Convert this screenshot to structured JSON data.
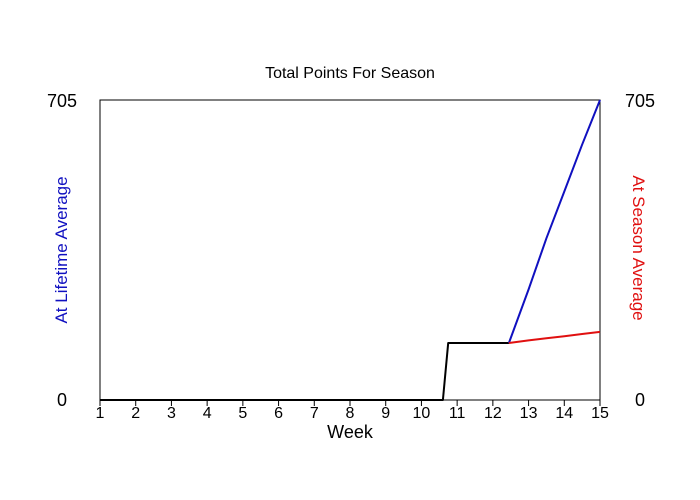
{
  "chart_data": {
    "type": "line",
    "title": "Total Points For Season",
    "xlabel": "Week",
    "ylabel_left": "At Lifetime Average",
    "ylabel_right": "At Season Average",
    "xlim": [
      1,
      15
    ],
    "ylim": [
      0,
      705
    ],
    "y_tick_labels": [
      "0",
      "705"
    ],
    "x_ticks": [
      "1",
      "2",
      "3",
      "4",
      "5",
      "6",
      "7",
      "8",
      "9",
      "10",
      "11",
      "12",
      "13",
      "14",
      "15"
    ],
    "colors": {
      "actual": "#000000",
      "lifetime": "#1010c0",
      "season": "#e01010"
    },
    "series": [
      {
        "id": "actual",
        "x": [
          1,
          10.6,
          10.75,
          12.45
        ],
        "y": [
          0,
          0,
          134,
          134
        ]
      },
      {
        "id": "lifetime",
        "x": [
          12.45,
          13,
          13.5,
          14,
          14.5,
          15
        ],
        "y": [
          134,
          260,
          380,
          490,
          600,
          705
        ]
      },
      {
        "id": "season",
        "x": [
          12.45,
          13,
          13.5,
          14,
          14.5,
          15
        ],
        "y": [
          134,
          140,
          145,
          150,
          155,
          160
        ]
      }
    ]
  }
}
